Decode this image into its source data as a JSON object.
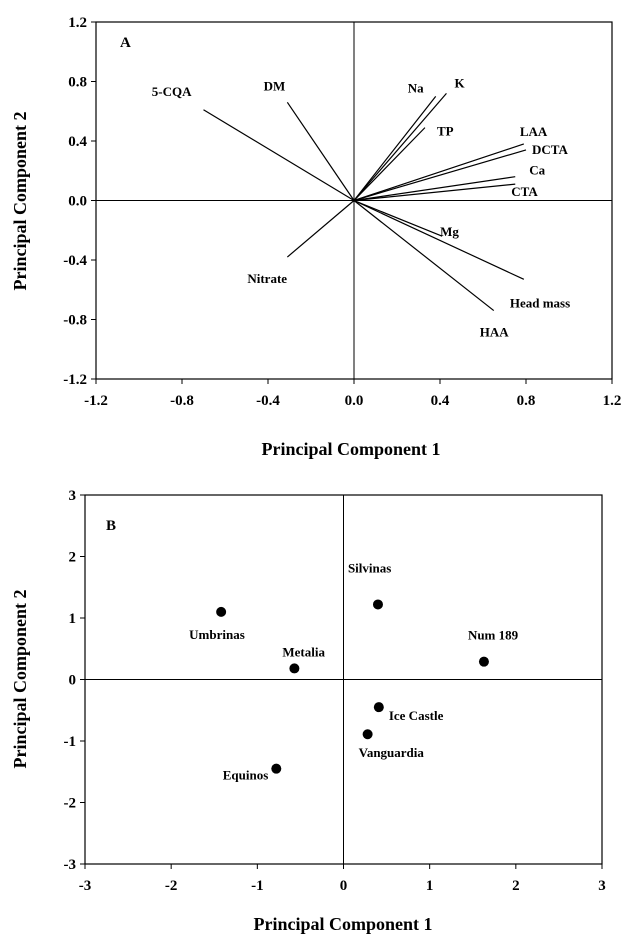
{
  "chart_data": [
    {
      "type": "biplot-loadings",
      "panel_label": "A",
      "xlabel": "Principal Component 1",
      "ylabel": "Principal Component 2",
      "xlim": [
        -1.2,
        1.2
      ],
      "ylim": [
        -1.2,
        1.2
      ],
      "xticks": [
        "-1.2",
        "-0.8",
        "-0.4",
        "0.0",
        "0.4",
        "0.8",
        "1.2"
      ],
      "yticks": [
        "1.2",
        "0.8",
        "0.4",
        "0.0",
        "-0.4",
        "-0.8",
        "-1.2"
      ],
      "grid": false,
      "vectors": [
        {
          "name": "5-CQA",
          "x": -0.7,
          "y": 0.61
        },
        {
          "name": "DM",
          "x": -0.31,
          "y": 0.66
        },
        {
          "name": "Na",
          "x": 0.38,
          "y": 0.7
        },
        {
          "name": "K",
          "x": 0.43,
          "y": 0.72
        },
        {
          "name": "TP",
          "x": 0.33,
          "y": 0.49
        },
        {
          "name": "LAA",
          "x": 0.79,
          "y": 0.38
        },
        {
          "name": "DCTA",
          "x": 0.8,
          "y": 0.34
        },
        {
          "name": "Ca",
          "x": 0.75,
          "y": 0.16
        },
        {
          "name": "CTA",
          "x": 0.75,
          "y": 0.11
        },
        {
          "name": "Mg",
          "x": 0.41,
          "y": -0.24
        },
        {
          "name": "Head mass",
          "x": 0.79,
          "y": -0.53
        },
        {
          "name": "HAA",
          "x": 0.65,
          "y": -0.74
        },
        {
          "name": "Nitrate",
          "x": -0.31,
          "y": -0.38
        }
      ]
    },
    {
      "type": "scatter",
      "panel_label": "B",
      "xlabel": "Principal Component 1",
      "ylabel": "Principal Component 2",
      "xlim": [
        -3,
        3
      ],
      "ylim": [
        -3,
        3
      ],
      "xticks": [
        "-3",
        "-2",
        "-1",
        "0",
        "1",
        "2",
        "3"
      ],
      "yticks": [
        "3",
        "2",
        "1",
        "0",
        "-1",
        "-2",
        "-3"
      ],
      "grid": false,
      "points": [
        {
          "name": "Silvinas",
          "x": 0.4,
          "y": 1.22
        },
        {
          "name": "Umbrinas",
          "x": -1.42,
          "y": 1.1
        },
        {
          "name": "Metalia",
          "x": -0.57,
          "y": 0.18
        },
        {
          "name": "Num 189",
          "x": 1.63,
          "y": 0.29
        },
        {
          "name": "Ice Castle",
          "x": 0.41,
          "y": -0.45
        },
        {
          "name": "Vanguardia",
          "x": 0.28,
          "y": -0.89
        },
        {
          "name": "Equinos",
          "x": -0.78,
          "y": -1.45
        }
      ]
    }
  ]
}
